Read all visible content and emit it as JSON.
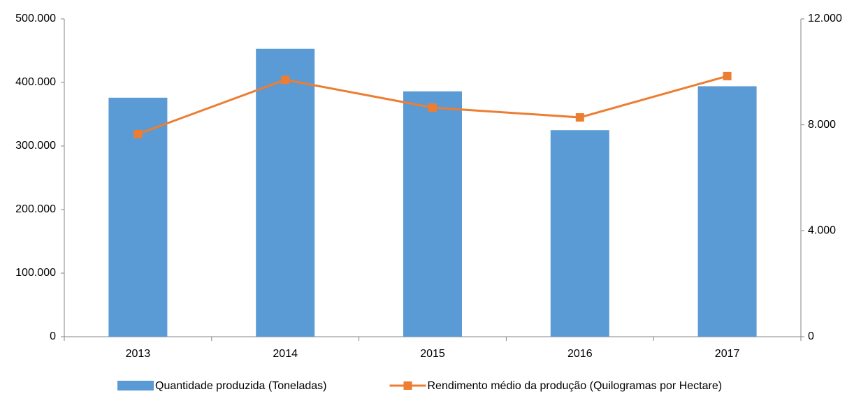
{
  "chart_data": {
    "type": "bar_line",
    "categories": [
      "2013",
      "2014",
      "2015",
      "2016",
      "2017"
    ],
    "series": [
      {
        "name": "Quantidade produzida (Toneladas)",
        "type": "bar",
        "color": "#5b9bd5",
        "values": [
          376000,
          453000,
          386000,
          325000,
          394000
        ]
      },
      {
        "name": "Rendimento médio da produção (Quilogramas por Hectare)",
        "type": "line",
        "axis": "y2",
        "color": "#ed7d31",
        "values": [
          7650,
          9700,
          8650,
          8280,
          9840
        ]
      }
    ],
    "ylim": [
      0,
      500000
    ],
    "yticks": [
      0,
      {
        "value": 100000,
        "label": "100.000"
      },
      {
        "value": 200000,
        "label": "200.000"
      },
      {
        "value": 300000,
        "label": "300.000"
      },
      {
        "value": 400000,
        "label": "400.000"
      },
      {
        "value": 500000,
        "label": "500.000"
      }
    ],
    "y2lim": [
      0,
      12000
    ],
    "y2ticks": [
      0,
      {
        "value": 4000,
        "label": "4.000"
      },
      {
        "value": 8000,
        "label": "8.000"
      },
      {
        "value": 12000,
        "label": "12.000"
      }
    ],
    "legend": "bottom"
  }
}
